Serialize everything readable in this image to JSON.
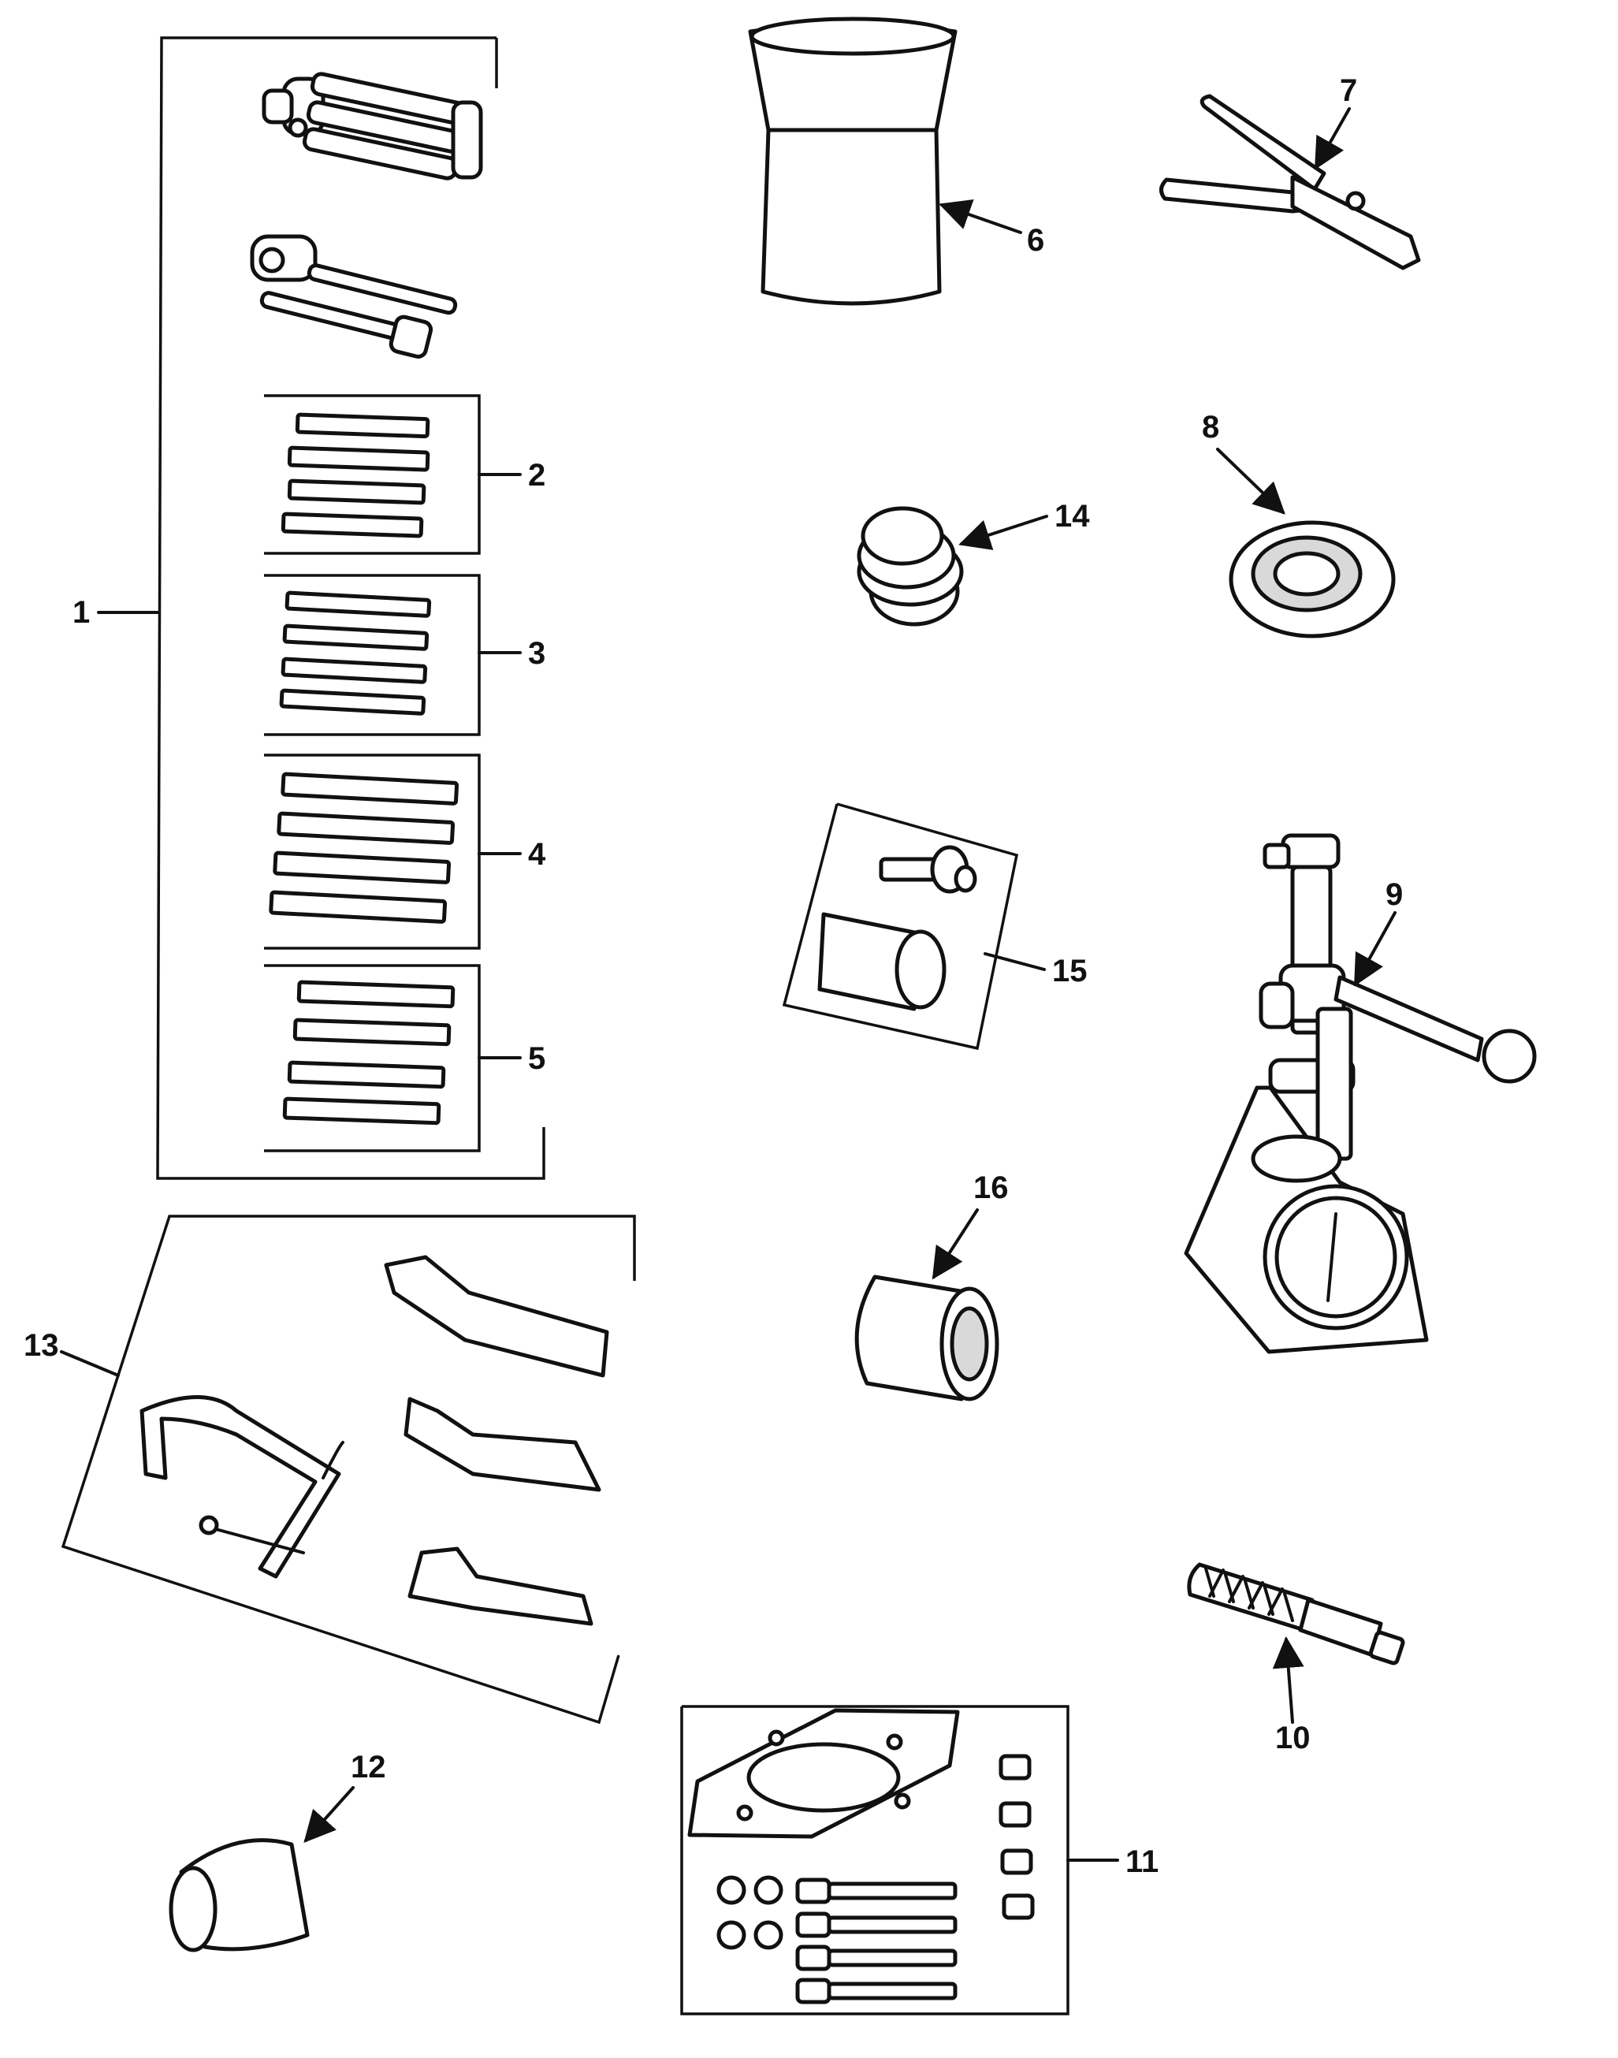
{
  "callouts": {
    "c1": "1",
    "c2": "2",
    "c3": "3",
    "c4": "4",
    "c5": "5",
    "c6": "6",
    "c7": "7",
    "c8": "8",
    "c9": "9",
    "c10": "10",
    "c11": "11",
    "c12": "12",
    "c13": "13",
    "c14": "14",
    "c15": "15",
    "c16": "16"
  },
  "colors": {
    "ink": "#111111",
    "paper": "#ffffff",
    "shade": "#d9d9d9"
  }
}
